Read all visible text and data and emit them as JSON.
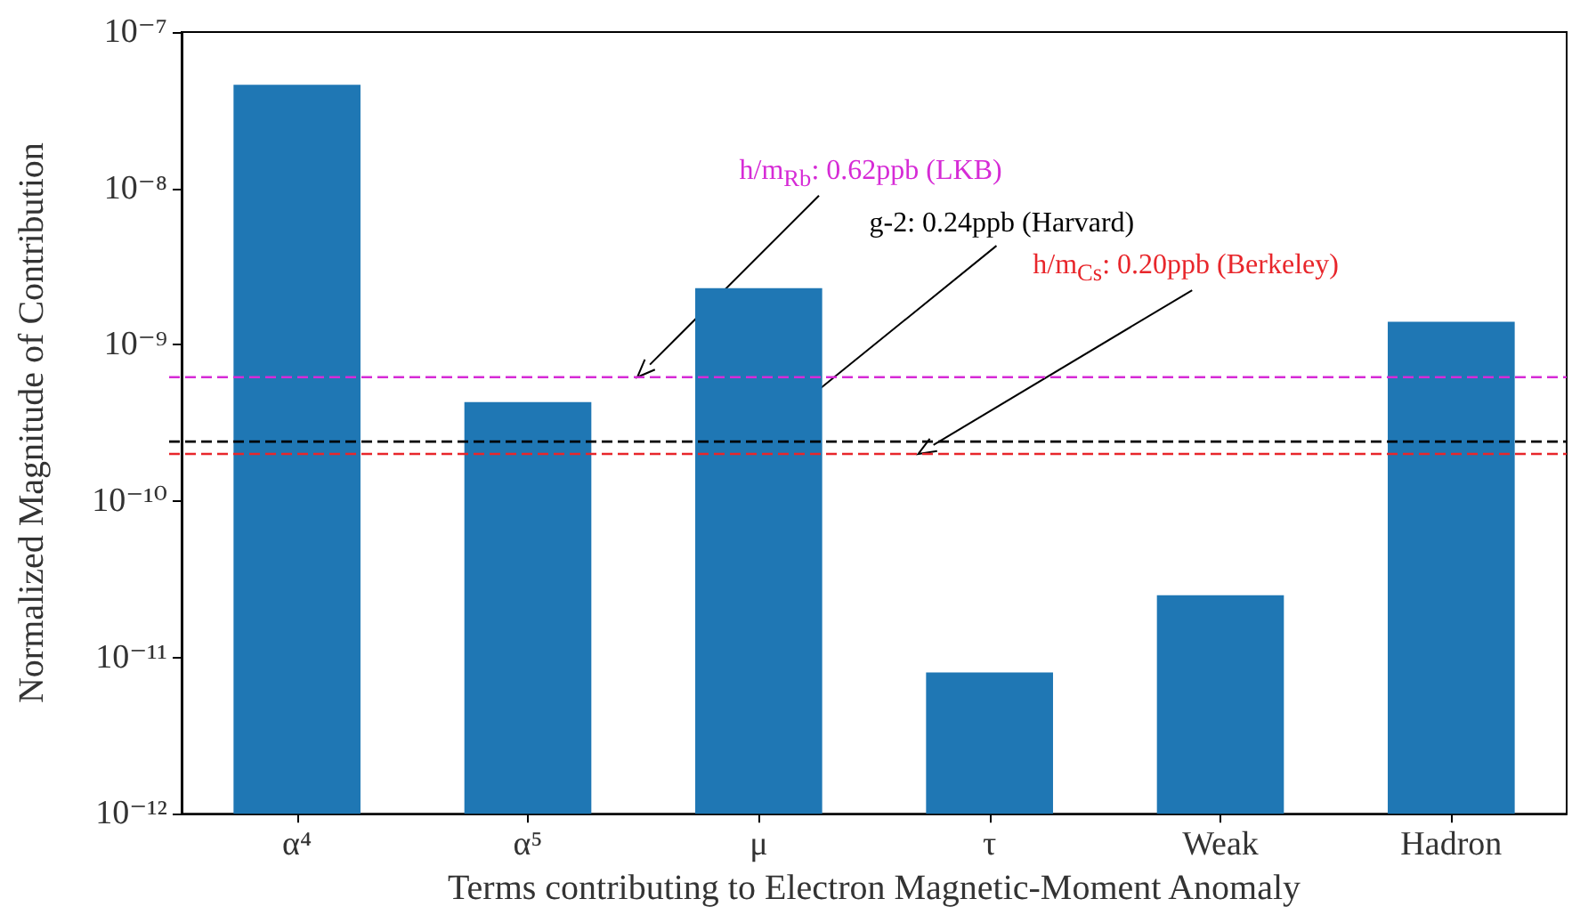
{
  "chart_data": {
    "type": "bar",
    "xlabel": "Terms contributing to Electron Magnetic-Moment Anomaly",
    "ylabel": "Normalized Magnitude of Contribution",
    "categories": [
      "α⁴",
      "α⁵",
      "μ",
      "τ",
      "Weak",
      "Hadron"
    ],
    "values": [
      4.6e-08,
      4.3e-10,
      2.3e-09,
      8e-12,
      2.5e-11,
      1.4e-09
    ],
    "color": "#1f77b4",
    "log": true,
    "grid": false,
    "ylim": [
      1e-12,
      1e-07
    ],
    "yticks": [
      {
        "value": 1e-12,
        "label": "10⁻¹²"
      },
      {
        "value": 1e-11,
        "label": "10⁻¹¹"
      },
      {
        "value": 1e-10,
        "label": "10⁻¹⁰"
      },
      {
        "value": 1e-09,
        "label": "10⁻⁹"
      },
      {
        "value": 1e-08,
        "label": "10⁻⁸"
      },
      {
        "value": 1e-07,
        "label": "10⁻⁷"
      }
    ],
    "ref_lines": [
      {
        "axis": "y",
        "value": 6.2e-10,
        "label": "h/m$_{Rb}$: 0.62ppb (LKB)",
        "color": "#d62bd6",
        "line_style": "dashed"
      },
      {
        "axis": "y",
        "value": 2.4e-10,
        "label": "g-2: 0.24ppb (Harvard)",
        "color": "#000000",
        "line_style": "dashed"
      },
      {
        "axis": "y",
        "value": 2e-10,
        "label": "h/m$_{Cs}$: 0.20ppb (Berkeley)",
        "color": "#e8262b",
        "line_style": "dashed"
      }
    ]
  }
}
